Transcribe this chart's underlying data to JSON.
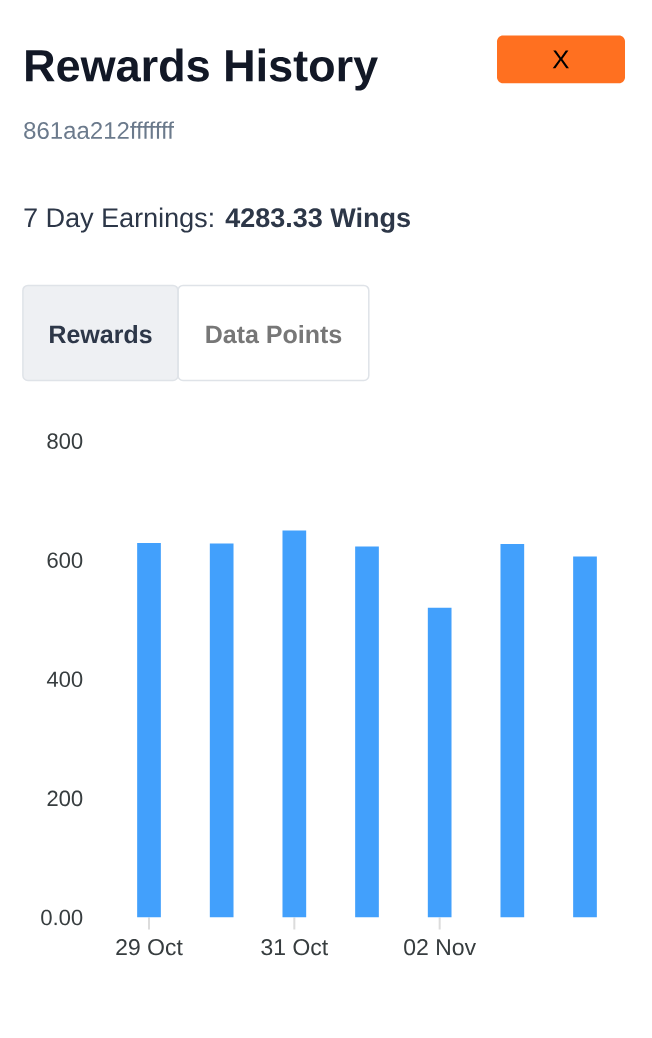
{
  "chart_data": {
    "type": "bar",
    "title": "Rewards History",
    "subtitle": "861aa212fffffff",
    "annotations": [
      "7 Day Earnings: **4283.33 Wings**",
      "X",
      "Rewards",
      "Data Points"
    ],
    "categories": [
      "29 Oct",
      null,
      "31 Oct",
      null,
      "02 Nov",
      null,
      null
    ],
    "values": [
      629,
      628,
      650,
      623,
      520,
      627,
      606
    ],
    "color": "#42a0fc",
    "ylim": [
      0,
      800
    ],
    "yticks": [
      {
        "value": 0,
        "label": "0.00"
      },
      200,
      400,
      600,
      800
    ]
  }
}
